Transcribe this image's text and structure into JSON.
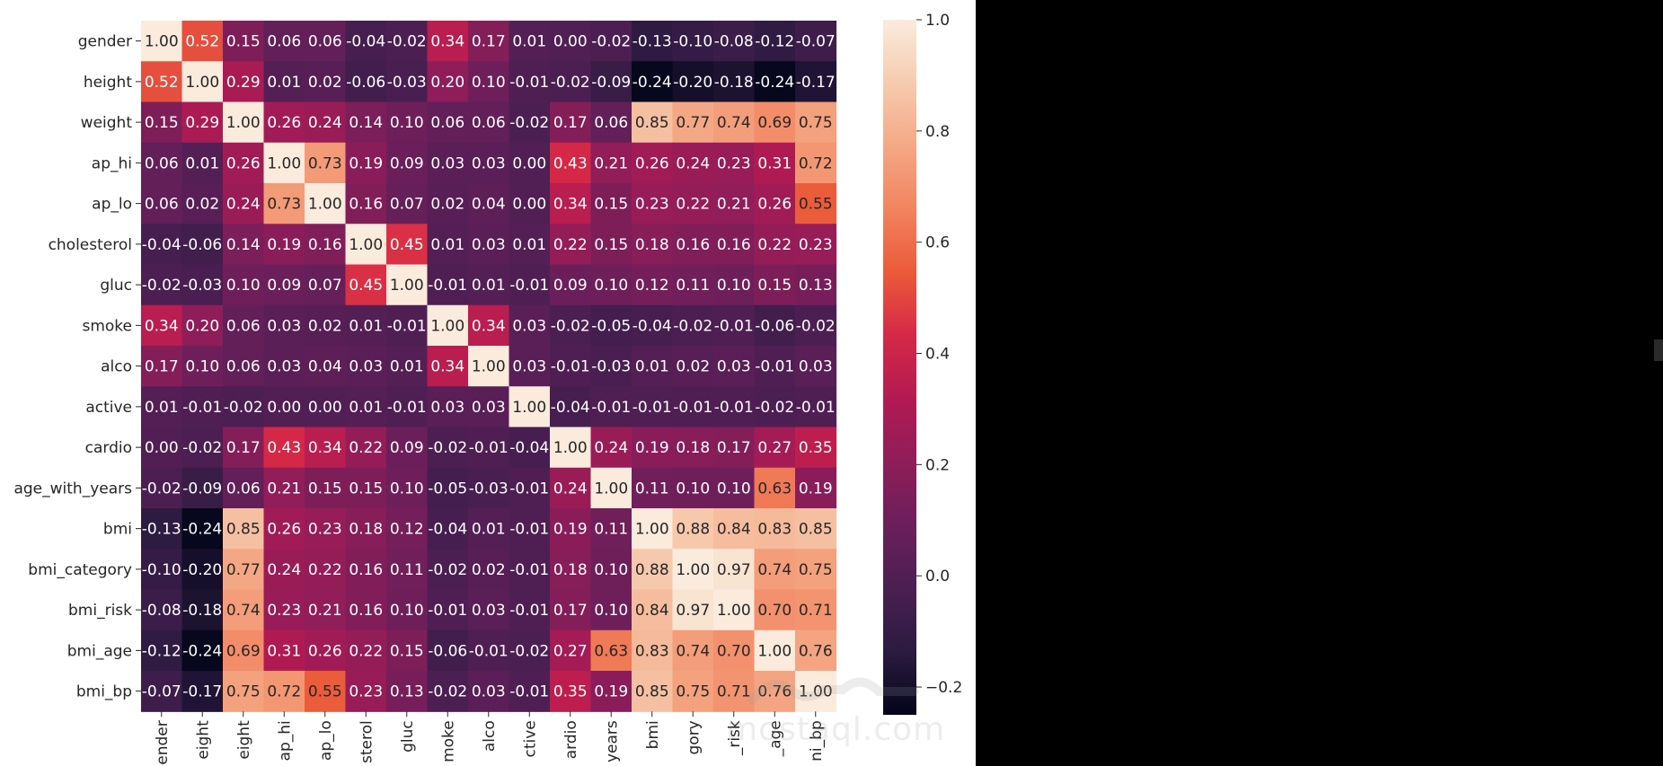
{
  "watermark": {
    "text": "mostaql.com"
  },
  "colors": {
    "background": "#ffffff",
    "text_light": "#ffffff",
    "text_dark": "#262626"
  },
  "chart_data": {
    "type": "heatmap",
    "rows": [
      "gender",
      "height",
      "weight",
      "ap_hi",
      "ap_lo",
      "cholesterol",
      "gluc",
      "smoke",
      "alco",
      "active",
      "cardio",
      "age_with_years",
      "bmi",
      "bmi_category",
      "bmi_risk",
      "bmi_age",
      "bmi_bp"
    ],
    "col_tick_labels": [
      "ender",
      "eight",
      "eight",
      "ap_hi",
      "ap_lo",
      "sterol",
      "gluc",
      "moke",
      "alco",
      "ctive",
      "ardio",
      "years",
      "bmi",
      "gory",
      "_risk",
      "_age",
      "ni_bp"
    ],
    "values": [
      [
        1.0,
        0.52,
        0.15,
        0.06,
        0.06,
        -0.04,
        -0.02,
        0.34,
        0.17,
        0.01,
        0.0,
        -0.02,
        -0.13,
        -0.1,
        -0.08,
        -0.12,
        -0.07
      ],
      [
        0.52,
        1.0,
        0.29,
        0.01,
        0.02,
        -0.06,
        -0.03,
        0.2,
        0.1,
        -0.01,
        -0.02,
        -0.09,
        -0.24,
        -0.2,
        -0.18,
        -0.24,
        -0.17
      ],
      [
        0.15,
        0.29,
        1.0,
        0.26,
        0.24,
        0.14,
        0.1,
        0.06,
        0.06,
        -0.02,
        0.17,
        0.06,
        0.85,
        0.77,
        0.74,
        0.69,
        0.75
      ],
      [
        0.06,
        0.01,
        0.26,
        1.0,
        0.73,
        0.19,
        0.09,
        0.03,
        0.03,
        0.0,
        0.43,
        0.21,
        0.26,
        0.24,
        0.23,
        0.31,
        0.72
      ],
      [
        0.06,
        0.02,
        0.24,
        0.73,
        1.0,
        0.16,
        0.07,
        0.02,
        0.04,
        0.0,
        0.34,
        0.15,
        0.23,
        0.22,
        0.21,
        0.26,
        0.55
      ],
      [
        -0.04,
        -0.06,
        0.14,
        0.19,
        0.16,
        1.0,
        0.45,
        0.01,
        0.03,
        0.01,
        0.22,
        0.15,
        0.18,
        0.16,
        0.16,
        0.22,
        0.23
      ],
      [
        -0.02,
        -0.03,
        0.1,
        0.09,
        0.07,
        0.45,
        1.0,
        -0.01,
        0.01,
        -0.01,
        0.09,
        0.1,
        0.12,
        0.11,
        0.1,
        0.15,
        0.13
      ],
      [
        0.34,
        0.2,
        0.06,
        0.03,
        0.02,
        0.01,
        -0.01,
        1.0,
        0.34,
        0.03,
        -0.02,
        -0.05,
        -0.04,
        -0.02,
        -0.01,
        -0.06,
        -0.02
      ],
      [
        0.17,
        0.1,
        0.06,
        0.03,
        0.04,
        0.03,
        0.01,
        0.34,
        1.0,
        0.03,
        -0.01,
        -0.03,
        0.01,
        0.02,
        0.03,
        -0.01,
        0.03
      ],
      [
        0.01,
        -0.01,
        -0.02,
        0.0,
        0.0,
        0.01,
        -0.01,
        0.03,
        0.03,
        1.0,
        -0.04,
        -0.01,
        -0.01,
        -0.01,
        -0.01,
        -0.02,
        -0.01
      ],
      [
        0.0,
        -0.02,
        0.17,
        0.43,
        0.34,
        0.22,
        0.09,
        -0.02,
        -0.01,
        -0.04,
        1.0,
        0.24,
        0.19,
        0.18,
        0.17,
        0.27,
        0.35
      ],
      [
        -0.02,
        -0.09,
        0.06,
        0.21,
        0.15,
        0.15,
        0.1,
        -0.05,
        -0.03,
        -0.01,
        0.24,
        1.0,
        0.11,
        0.1,
        0.1,
        0.63,
        0.19
      ],
      [
        -0.13,
        -0.24,
        0.85,
        0.26,
        0.23,
        0.18,
        0.12,
        -0.04,
        0.01,
        -0.01,
        0.19,
        0.11,
        1.0,
        0.88,
        0.84,
        0.83,
        0.85
      ],
      [
        -0.1,
        -0.2,
        0.77,
        0.24,
        0.22,
        0.16,
        0.11,
        -0.02,
        0.02,
        -0.01,
        0.18,
        0.1,
        0.88,
        1.0,
        0.97,
        0.74,
        0.75
      ],
      [
        -0.08,
        -0.18,
        0.74,
        0.23,
        0.21,
        0.16,
        0.1,
        -0.01,
        0.03,
        -0.01,
        0.17,
        0.1,
        0.84,
        0.97,
        1.0,
        0.7,
        0.71
      ],
      [
        -0.12,
        -0.24,
        0.69,
        0.31,
        0.26,
        0.22,
        0.15,
        -0.06,
        -0.01,
        -0.02,
        0.27,
        0.63,
        0.83,
        0.74,
        0.7,
        1.0,
        0.76
      ],
      [
        -0.07,
        -0.17,
        0.75,
        0.72,
        0.55,
        0.23,
        0.13,
        -0.02,
        0.03,
        -0.01,
        0.35,
        0.19,
        0.85,
        0.75,
        0.71,
        0.76,
        1.0
      ]
    ],
    "colorbar": {
      "min": -0.25,
      "max": 1.0,
      "ticks": [
        "1.0",
        "0.8",
        "0.6",
        "0.4",
        "0.2",
        "0.0",
        "−0.2"
      ],
      "tick_values": [
        1.0,
        0.8,
        0.6,
        0.4,
        0.2,
        0.0,
        -0.2
      ]
    },
    "colormap_stops": [
      "#03051a",
      "#2b1b40",
      "#4b1f52",
      "#6b1f5a",
      "#8f1d59",
      "#b31a52",
      "#d62847",
      "#eb5a3a",
      "#f2835f",
      "#f4a885",
      "#f6cbaf",
      "#faebdd"
    ],
    "annotated": true,
    "grid": false
  }
}
